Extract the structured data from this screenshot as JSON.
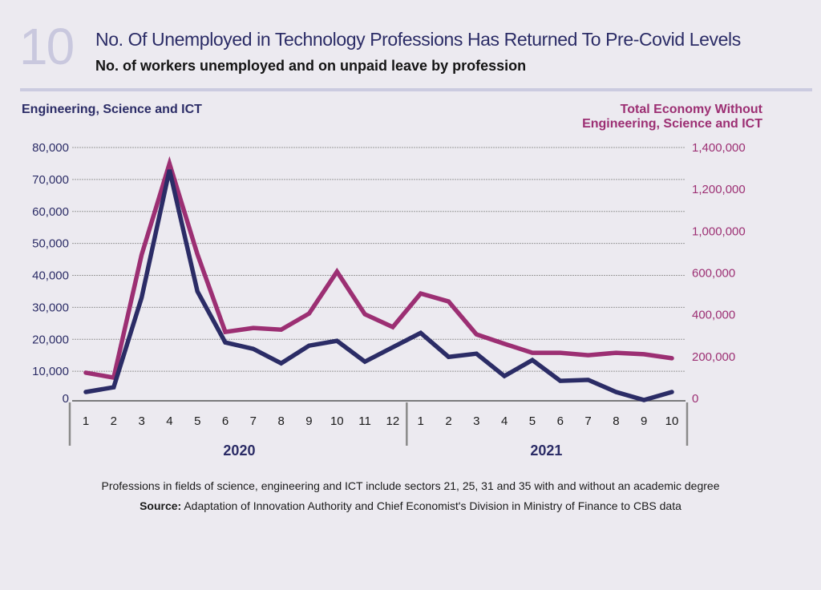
{
  "header": {
    "figure_number": "10",
    "title": "No. Of Unemployed in Technology Professions Has Returned To Pre-Covid Levels",
    "subtitle": "No. of workers unemployed and on unpaid leave by profession"
  },
  "footer": {
    "note": "Professions in fields of science, engineering and ICT include sectors 21, 25, 31 and 35 with and without an academic degree",
    "source_label": "Source:",
    "source_text": " Adaptation of Innovation Authority and Chief Economist's Division in Ministry of Finance to CBS data"
  },
  "colors": {
    "left_series": "#2b2c66",
    "right_series": "#9c2f73",
    "grid": "#9a9a9a",
    "axis": "#555555"
  },
  "chart_data": {
    "type": "line",
    "title": "No. Of Unemployed in Technology Professions Has Returned To Pre-Covid Levels",
    "subtitle": "No. of workers unemployed and on unpaid leave by profession",
    "x": [
      "1",
      "2",
      "3",
      "4",
      "5",
      "6",
      "7",
      "8",
      "9",
      "10",
      "11",
      "12",
      "1",
      "2",
      "3",
      "4",
      "5",
      "6",
      "7",
      "8",
      "9",
      "10"
    ],
    "x_groups": [
      {
        "label": "2020",
        "months": 12
      },
      {
        "label": "2021",
        "months": 10
      }
    ],
    "left_axis": {
      "title": "Engineering, Science and ICT",
      "ylim": [
        0,
        80000
      ],
      "ticks": [
        "0",
        "10,000",
        "20,000",
        "30,000",
        "40,000",
        "50,000",
        "60,000",
        "70,000",
        "80,000"
      ]
    },
    "right_axis": {
      "title_line1": "Total Economy Without",
      "title_line2": "Engineering, Science and ICT",
      "ylim": [
        0,
        1400000
      ],
      "ticks": [
        "0",
        "200,000",
        "400,000",
        "600,000",
        "1,000,000",
        "1,200,000",
        "1,400,000"
      ]
    },
    "grid": true,
    "series": [
      {
        "name": "Engineering, Science and ICT",
        "axis": "left",
        "values": [
          3500,
          5000,
          33000,
          73000,
          35000,
          19000,
          17000,
          12500,
          18000,
          19500,
          13000,
          17500,
          22000,
          14500,
          15500,
          8500,
          13500,
          7000,
          7300,
          3500,
          1000,
          3500
        ]
      },
      {
        "name": "Total Economy Without Engineering, Science and ICT",
        "axis": "right",
        "values": [
          167000,
          140000,
          812000,
          1312000,
          816000,
          390000,
          412000,
          403000,
          491000,
          720000,
          487000,
          417000,
          601000,
          557000,
          377000,
          325000,
          276000,
          276000,
          263000,
          276000,
          268000,
          246000
        ]
      }
    ]
  }
}
